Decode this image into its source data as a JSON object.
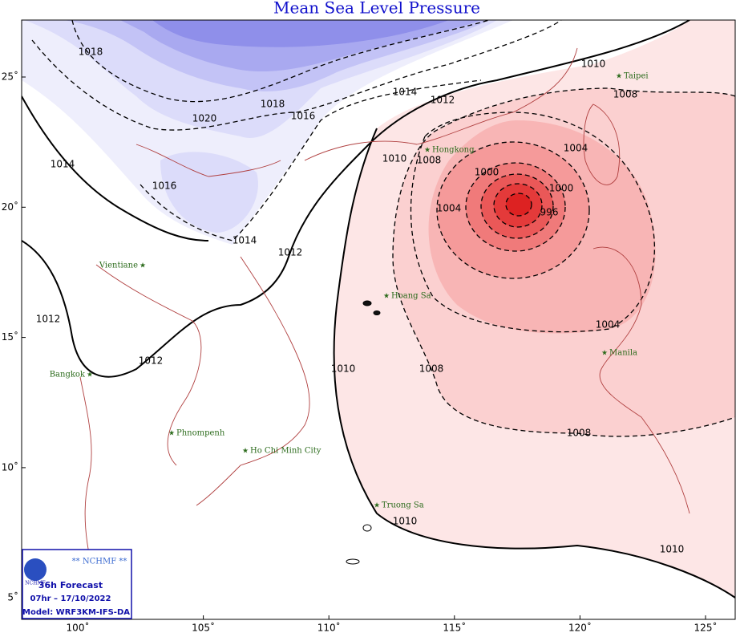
{
  "title": "Mean Sea Level Pressure",
  "lon_labels": [
    "100˚",
    "105˚",
    "110˚",
    "115˚",
    "120˚",
    "125˚"
  ],
  "lat_labels": [
    "25˚",
    "20˚",
    "15˚",
    "10˚",
    "5˚"
  ],
  "cities": [
    "Taipei",
    "Hongkong",
    "Vientiane",
    "Hoang Sa",
    "Manila",
    "Bangkok",
    "Phnompenh",
    "Ho Chi Minh City",
    "Truong Sa"
  ],
  "contour_labels": [
    "1018",
    "1020",
    "1018",
    "1016",
    "1014",
    "1012",
    "1010",
    "1008",
    "1014",
    "1016",
    "1014",
    "1012",
    "1010",
    "1008",
    "1004",
    "1000",
    "1000",
    "1004",
    "996",
    "1004",
    "1012",
    "1012",
    "1010",
    "1008",
    "1008",
    "1010",
    "1010"
  ],
  "info": {
    "logo": "NCHMF",
    "agency": "** NCHMF **",
    "forecast": "36h Forecast",
    "time": "07hr – 17/10/2022",
    "model": "Model: WRF3KM-IFS-DA"
  }
}
